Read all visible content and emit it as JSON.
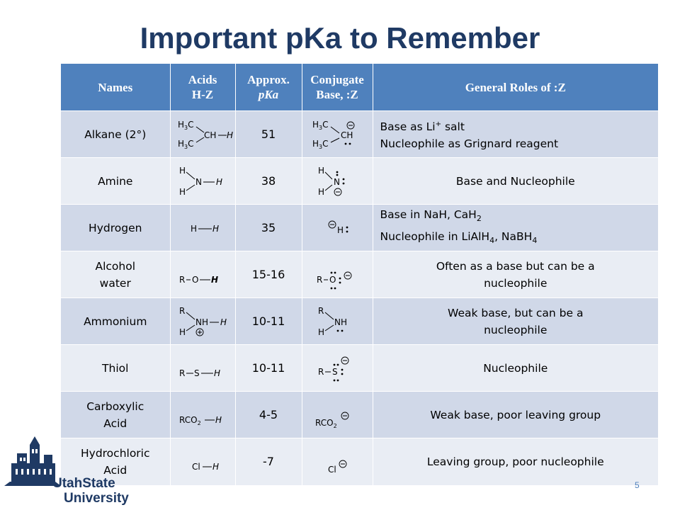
{
  "slide": {
    "title": "Important pKa to Remember",
    "page_number": "5",
    "logo": {
      "word1": "UtahState",
      "word2": "University"
    }
  },
  "table": {
    "headers": {
      "names": "Names",
      "acids_line1": "Acids",
      "acids_line2": "H-Z",
      "pka_line1": "Approx.",
      "pka_line2": "pKa",
      "conj_line1": "Conjugate",
      "conj_line2": "Base, :Z",
      "roles": "General Roles of :Z"
    },
    "rows": [
      {
        "name": "Alkane (2°)",
        "pka": "51",
        "role_line1": "Base as Li",
        "role_line1_sup": "+",
        "role_line1_end": " salt",
        "role_line2": "Nucleophile as Grignard reagent",
        "acid_struct": {
          "a": "H",
          "b": "3",
          "c": "C",
          "ch": "CH",
          "h": "H"
        },
        "base_struct": {
          "a": "H",
          "b": "3",
          "c": "C",
          "ch": "CH"
        }
      },
      {
        "name": "Amine",
        "pka": "38",
        "role": "Base and Nucleophile",
        "acid_struct": {
          "h": "H",
          "n": "N"
        },
        "base_struct": {
          "h": "H",
          "n": "N"
        }
      },
      {
        "name": "Hydrogen",
        "pka": "35",
        "role_a1": "Base in NaH, CaH",
        "role_a1_sub": "2",
        "role_b1": "Nucleophile in LiAlH",
        "role_b1_sub": "4",
        "role_b2": ", NaBH",
        "role_b2_sub": "4",
        "acid_struct": {
          "h1": "H",
          "h2": "H"
        },
        "base_struct": {
          "h": "H"
        }
      },
      {
        "name_line1": "Alcohol",
        "name_line2": "water",
        "pka": "15-16",
        "role_line1": "Often as a base but can be a",
        "role_line2": "nucleophile",
        "acid_struct": {
          "r": "R",
          "o": "O",
          "h": "H"
        },
        "base_struct": {
          "r": "R",
          "o": "O"
        }
      },
      {
        "name": "Ammonium",
        "pka": "10-11",
        "role_line1": "Weak base, but can be a",
        "role_line2": "nucleophile",
        "acid_struct": {
          "r": "R",
          "nh": "NH",
          "h1": "H",
          "h2": "H"
        },
        "base_struct": {
          "r": "R",
          "nh": "NH",
          "h": "H"
        }
      },
      {
        "name": "Thiol",
        "pka": "10-11",
        "role": "Nucleophile",
        "acid_struct": {
          "r": "R",
          "s": "S",
          "h": "H"
        },
        "base_struct": {
          "r": "R",
          "s": "S"
        }
      },
      {
        "name_line1": "Carboxylic",
        "name_line2": "Acid",
        "pka": "4-5",
        "role": "Weak base, poor leaving group",
        "acid_struct": {
          "rco": "RCO",
          "two": "2",
          "h": "H"
        },
        "base_struct": {
          "rco": "RCO",
          "two": "2"
        }
      },
      {
        "name_line1": "Hydrochloric",
        "name_line2": "Acid",
        "pka": "-7",
        "role": "Leaving group, poor nucleophile",
        "acid_struct": {
          "cl": "Cl",
          "h": "H"
        },
        "base_struct": {
          "cl": "Cl"
        }
      }
    ]
  }
}
